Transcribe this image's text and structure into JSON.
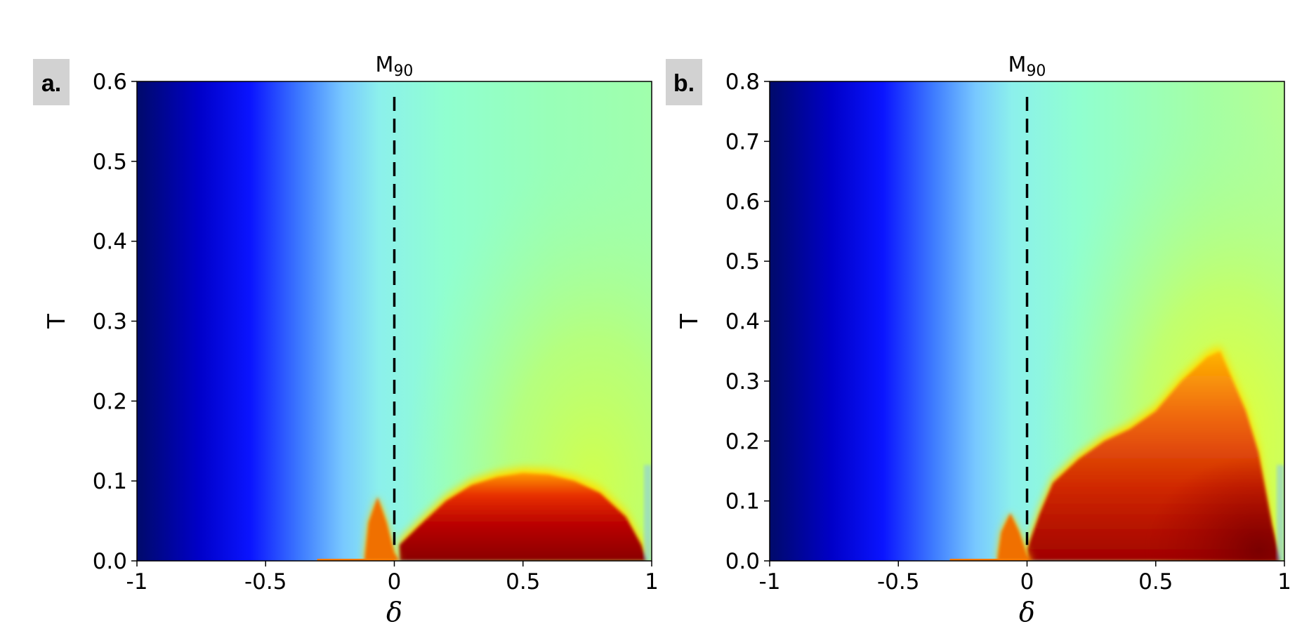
{
  "panel_labels": [
    "a.",
    "b."
  ],
  "colors": {
    "jet": [
      "#00007f",
      "#0000ff",
      "#00ffff",
      "#ffff00",
      "#ff0000",
      "#7f0000"
    ],
    "label_bg": "#d2d2d2"
  },
  "chart_data": [
    {
      "type": "heatmap",
      "panel": "a.",
      "title": "",
      "xlabel": "δ",
      "ylabel": "T",
      "xlim": [
        -1,
        1
      ],
      "ylim": [
        0,
        0.6
      ],
      "xticks": [
        "-1",
        "-0.5",
        "0",
        "0.5",
        "1"
      ],
      "yticks": [
        "0.0",
        "0.1",
        "0.2",
        "0.3",
        "0.4",
        "0.5",
        "0.6"
      ],
      "colormap": "jet",
      "vline": {
        "x": 0,
        "style": "dashed",
        "label_main": "M",
        "label_sub": "90"
      },
      "high_region_boundary": {
        "description": "dark red dome, approximate T boundary vs δ",
        "delta": [
          0.02,
          0.1,
          0.2,
          0.3,
          0.4,
          0.5,
          0.6,
          0.7,
          0.8,
          0.9,
          0.96,
          0.98
        ],
        "T": [
          0.02,
          0.045,
          0.075,
          0.095,
          0.105,
          0.11,
          0.108,
          0.1,
          0.085,
          0.055,
          0.02,
          0.0
        ]
      },
      "spike": {
        "delta_range": [
          -0.1,
          0.0
        ],
        "T_max": 0.08
      }
    },
    {
      "type": "heatmap",
      "panel": "b.",
      "title": "",
      "xlabel": "δ",
      "ylabel": "T",
      "xlim": [
        -1,
        1
      ],
      "ylim": [
        0,
        0.8
      ],
      "xticks": [
        "-1",
        "-0.5",
        "0",
        "0.5",
        "1"
      ],
      "yticks": [
        "0.0",
        "0.1",
        "0.2",
        "0.3",
        "0.4",
        "0.5",
        "0.6",
        "0.7",
        "0.8"
      ],
      "colormap": "jet",
      "vline": {
        "x": 0,
        "style": "dashed",
        "label_main": "M",
        "label_sub": "90"
      },
      "high_region_boundary": {
        "description": "red region rising to a peak near δ≈0.75, approximate T boundary vs δ",
        "delta": [
          0.0,
          0.05,
          0.1,
          0.2,
          0.3,
          0.4,
          0.5,
          0.6,
          0.7,
          0.75,
          0.8,
          0.85,
          0.9,
          0.95,
          0.98
        ],
        "T": [
          0.02,
          0.08,
          0.13,
          0.17,
          0.2,
          0.22,
          0.25,
          0.3,
          0.34,
          0.35,
          0.3,
          0.25,
          0.18,
          0.06,
          0.0
        ]
      },
      "spike": {
        "delta_range": [
          -0.1,
          0.0
        ],
        "T_max": 0.08
      }
    }
  ]
}
